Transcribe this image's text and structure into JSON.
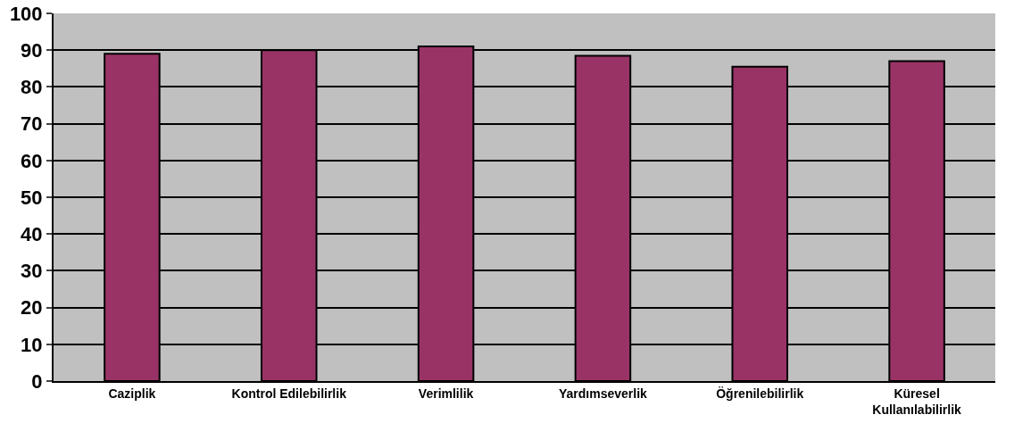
{
  "chart_data": {
    "type": "bar",
    "categories": [
      "Caziplik",
      "Kontrol Edilebilirlik",
      "Verimlilik",
      "Yardımseverlik",
      "Öğrenilebilirlik",
      "Küresel\nKullanılabilirlik"
    ],
    "values": [
      89,
      90,
      91,
      88.5,
      85.5,
      87
    ],
    "color": "#993366",
    "ylim": [
      0,
      100
    ],
    "yticks": [
      0,
      10,
      20,
      30,
      40,
      50,
      60,
      70,
      80,
      90,
      100
    ],
    "grid": "y",
    "legend": false
  }
}
